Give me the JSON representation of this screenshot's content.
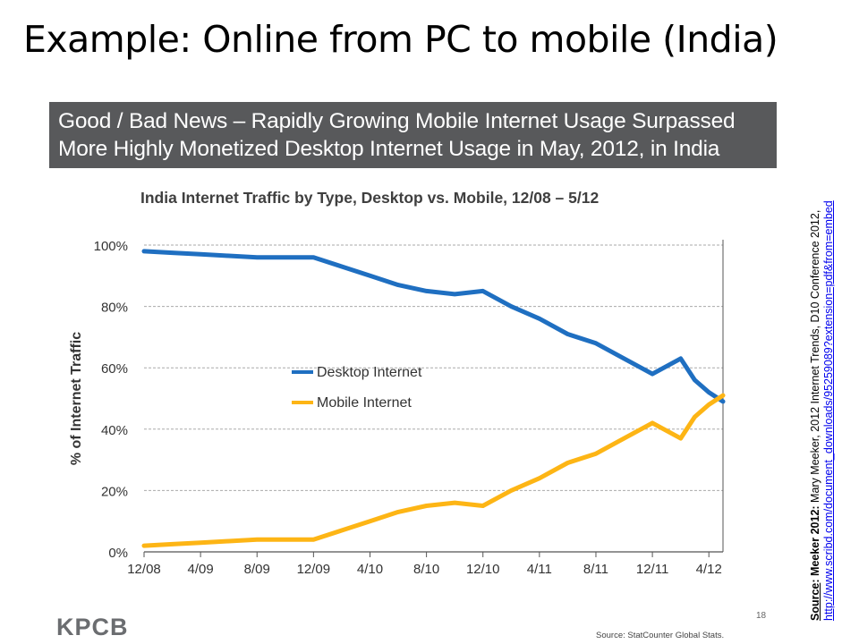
{
  "slide": {
    "title": "Example: Online from PC to mobile (India)",
    "banner_line1": "Good / Bad News – Rapidly Growing Mobile Internet Usage Surpassed",
    "banner_line2": "More Highly Monetized Desktop Internet Usage in May, 2012, in India",
    "logo": "KPCB",
    "source_line": "Source: StatCounter Global Stats.",
    "page_number": "18",
    "side_note": {
      "label": "Source",
      "prefix": ": Meeker 2012:",
      "text": " Mary Meeker,  2012 Internet Trends, D10 Conference 2012,",
      "link": "http://www.scribd.com/document_downloads/95259089?extension=pdf&from=embed"
    }
  },
  "colors": {
    "desktop": "#1f6fc1",
    "mobile": "#fdb515",
    "banner": "#58595b",
    "grid": "#aaaaaa"
  },
  "chart_data": {
    "type": "line",
    "title": "India Internet Traffic by Type, Desktop vs. Mobile, 12/08 – 5/12",
    "xlabel": "",
    "ylabel": "% of Internet Traffic",
    "ylim": [
      0,
      100
    ],
    "yticks": [
      "0%",
      "20%",
      "40%",
      "60%",
      "80%",
      "100%"
    ],
    "xticks": [
      "12/08",
      "4/09",
      "8/09",
      "12/09",
      "4/10",
      "8/10",
      "12/10",
      "4/11",
      "8/11",
      "12/11",
      "4/12"
    ],
    "grid": true,
    "legend_position": "center-left",
    "series": [
      {
        "name": "Desktop Internet",
        "x": [
          "12/08",
          "2/09",
          "4/09",
          "6/09",
          "8/09",
          "10/09",
          "12/09",
          "2/10",
          "4/10",
          "6/10",
          "8/10",
          "10/10",
          "12/10",
          "2/11",
          "4/11",
          "6/11",
          "8/11",
          "10/11",
          "12/11",
          "2/12",
          "3/12",
          "4/12",
          "5/12"
        ],
        "values": [
          98,
          97.5,
          97,
          96.5,
          96,
          96,
          96,
          93,
          90,
          87,
          85,
          84,
          85,
          80,
          76,
          71,
          68,
          63,
          58,
          63,
          56,
          52,
          49
        ]
      },
      {
        "name": "Mobile Internet",
        "x": [
          "12/08",
          "2/09",
          "4/09",
          "6/09",
          "8/09",
          "10/09",
          "12/09",
          "2/10",
          "4/10",
          "6/10",
          "8/10",
          "10/10",
          "12/10",
          "2/11",
          "4/11",
          "6/11",
          "8/11",
          "10/11",
          "12/11",
          "2/12",
          "3/12",
          "4/12",
          "5/12"
        ],
        "values": [
          2,
          2.5,
          3,
          3.5,
          4,
          4,
          4,
          7,
          10,
          13,
          15,
          16,
          15,
          20,
          24,
          29,
          32,
          37,
          42,
          37,
          44,
          48,
          51
        ]
      }
    ]
  }
}
